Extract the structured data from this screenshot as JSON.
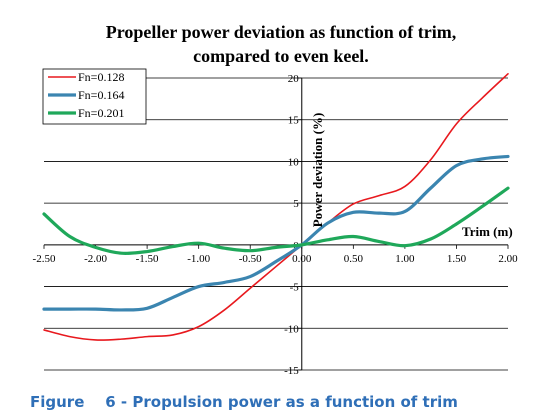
{
  "caption": "Figure    6 - Propulsion power as a function of trim",
  "chart_data": {
    "type": "line",
    "title": "Propeller power deviation as function of trim,",
    "subtitle": "compared to even keel.",
    "xlabel": "Trim (m)",
    "ylabel": "Power deviation (%)",
    "xlim": [
      -2.5,
      2.0
    ],
    "ylim": [
      -15,
      20
    ],
    "x_ticks": [
      -2.5,
      -2.0,
      -1.5,
      -1.0,
      -0.5,
      0.0,
      0.5,
      1.0,
      1.5,
      2.0
    ],
    "x_tick_labels": [
      "-2.50",
      "-2.00",
      "-1.50",
      "-1.00",
      "-0.50",
      "0.00",
      "0.50",
      "1.00",
      "1.50",
      "2.00"
    ],
    "y_ticks": [
      -15,
      -10,
      -5,
      0,
      5,
      10,
      15,
      20
    ],
    "y_tick_labels": [
      "-15",
      "-10",
      "-5",
      "0",
      "5",
      "10",
      "15",
      "20"
    ],
    "grid": "horizontal",
    "legend_position": "top-left",
    "series": [
      {
        "name": "Fn=0.128",
        "color": "#e8191e",
        "points": [
          [
            -2.5,
            -10.2
          ],
          [
            -2.25,
            -11.0
          ],
          [
            -2.0,
            -11.4
          ],
          [
            -1.75,
            -11.3
          ],
          [
            -1.5,
            -11.0
          ],
          [
            -1.25,
            -10.8
          ],
          [
            -1.0,
            -9.8
          ],
          [
            -0.75,
            -7.8
          ],
          [
            -0.5,
            -5.2
          ],
          [
            -0.25,
            -2.6
          ],
          [
            0.0,
            0.0
          ],
          [
            0.25,
            2.6
          ],
          [
            0.5,
            4.9
          ],
          [
            0.75,
            5.9
          ],
          [
            1.0,
            7.0
          ],
          [
            1.25,
            10.2
          ],
          [
            1.5,
            14.5
          ],
          [
            1.75,
            17.6
          ],
          [
            2.0,
            20.5
          ]
        ]
      },
      {
        "name": "Fn=0.164",
        "color": "#3b85b0",
        "points": [
          [
            -2.5,
            -7.7
          ],
          [
            -2.25,
            -7.7
          ],
          [
            -2.0,
            -7.7
          ],
          [
            -1.75,
            -7.8
          ],
          [
            -1.5,
            -7.6
          ],
          [
            -1.25,
            -6.3
          ],
          [
            -1.0,
            -5.0
          ],
          [
            -0.75,
            -4.5
          ],
          [
            -0.5,
            -3.8
          ],
          [
            -0.25,
            -2.0
          ],
          [
            0.0,
            0.0
          ],
          [
            0.25,
            2.6
          ],
          [
            0.5,
            3.9
          ],
          [
            0.75,
            3.8
          ],
          [
            1.0,
            4.0
          ],
          [
            1.25,
            6.8
          ],
          [
            1.5,
            9.5
          ],
          [
            1.75,
            10.3
          ],
          [
            2.0,
            10.6
          ]
        ]
      },
      {
        "name": "Fn=0.201",
        "color": "#1fa85a",
        "points": [
          [
            -2.5,
            3.7
          ],
          [
            -2.25,
            1.0
          ],
          [
            -2.0,
            -0.3
          ],
          [
            -1.75,
            -1.0
          ],
          [
            -1.5,
            -0.8
          ],
          [
            -1.25,
            -0.2
          ],
          [
            -1.0,
            0.2
          ],
          [
            -0.75,
            -0.4
          ],
          [
            -0.5,
            -0.7
          ],
          [
            -0.25,
            -0.3
          ],
          [
            0.0,
            0.0
          ],
          [
            0.25,
            0.6
          ],
          [
            0.5,
            1.0
          ],
          [
            0.75,
            0.4
          ],
          [
            1.0,
            -0.1
          ],
          [
            1.25,
            0.7
          ],
          [
            1.5,
            2.5
          ],
          [
            1.75,
            4.6
          ],
          [
            2.0,
            6.8
          ]
        ]
      }
    ]
  }
}
